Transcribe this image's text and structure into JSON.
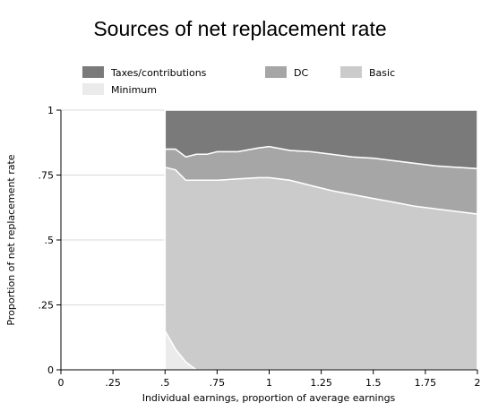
{
  "chart_data": {
    "type": "area",
    "stacked": true,
    "title": "Sources of net replacement rate",
    "xlabel": "Individual earnings, proportion of average earnings",
    "ylabel": "Proportion of net replacement rate",
    "xlim": [
      0,
      2
    ],
    "ylim": [
      0,
      1
    ],
    "x_ticks": [
      {
        "v": 0,
        "label": "0"
      },
      {
        "v": 0.25,
        "label": ".25"
      },
      {
        "v": 0.5,
        "label": ".5"
      },
      {
        "v": 0.75,
        "label": ".75"
      },
      {
        "v": 1,
        "label": "1"
      },
      {
        "v": 1.25,
        "label": "1.25"
      },
      {
        "v": 1.5,
        "label": "1.5"
      },
      {
        "v": 1.75,
        "label": "1.75"
      },
      {
        "v": 2,
        "label": "2"
      }
    ],
    "y_ticks": [
      {
        "v": 0,
        "label": "0"
      },
      {
        "v": 0.25,
        "label": ".25"
      },
      {
        "v": 0.5,
        "label": ".5"
      },
      {
        "v": 0.75,
        "label": ".75"
      },
      {
        "v": 1,
        "label": "1"
      }
    ],
    "grid": true,
    "legend_position": "top",
    "series": [
      {
        "name": "Minimum",
        "color": "#ebebeb",
        "x": [
          0.5,
          0.55,
          0.6,
          0.65
        ],
        "values": [
          0.15,
          0.08,
          0.03,
          0.0
        ]
      },
      {
        "name": "Basic",
        "color": "#cbcbcb",
        "x": [
          0.5,
          0.55,
          0.6,
          0.65,
          0.7,
          0.75,
          0.85,
          0.95,
          1.0,
          1.1,
          1.2,
          1.3,
          1.4,
          1.5,
          1.6,
          1.7,
          1.8,
          1.9,
          2.0
        ],
        "values": [
          0.63,
          0.69,
          0.7,
          0.73,
          0.73,
          0.73,
          0.735,
          0.74,
          0.74,
          0.73,
          0.71,
          0.69,
          0.675,
          0.66,
          0.645,
          0.63,
          0.62,
          0.61,
          0.6
        ]
      },
      {
        "name": "DC",
        "color": "#a6a6a6",
        "x": [
          0.5,
          0.55,
          0.6,
          0.65,
          0.7,
          0.75,
          0.85,
          0.95,
          1.0,
          1.1,
          1.2,
          1.3,
          1.4,
          1.5,
          1.6,
          1.7,
          1.8,
          1.9,
          2.0
        ],
        "values": [
          0.07,
          0.08,
          0.09,
          0.1,
          0.1,
          0.11,
          0.105,
          0.115,
          0.12,
          0.115,
          0.13,
          0.14,
          0.145,
          0.155,
          0.16,
          0.165,
          0.165,
          0.17,
          0.175
        ]
      },
      {
        "name": "Taxes/contributions",
        "color": "#7a7a7a",
        "x": [
          0.5,
          0.55,
          0.6,
          0.65,
          0.7,
          0.75,
          0.85,
          0.95,
          1.0,
          1.1,
          1.2,
          1.3,
          1.4,
          1.5,
          1.6,
          1.7,
          1.8,
          1.9,
          2.0
        ],
        "values": [
          0.15,
          0.15,
          0.18,
          0.17,
          0.17,
          0.16,
          0.16,
          0.145,
          0.14,
          0.155,
          0.16,
          0.17,
          0.18,
          0.185,
          0.195,
          0.205,
          0.215,
          0.22,
          0.225
        ]
      }
    ],
    "legend_items": [
      {
        "label": "Taxes/contributions",
        "color": "#7a7a7a"
      },
      {
        "label": "DC",
        "color": "#a6a6a6"
      },
      {
        "label": "Basic",
        "color": "#cbcbcb"
      },
      {
        "label": "Minimum",
        "color": "#ebebeb"
      }
    ]
  }
}
